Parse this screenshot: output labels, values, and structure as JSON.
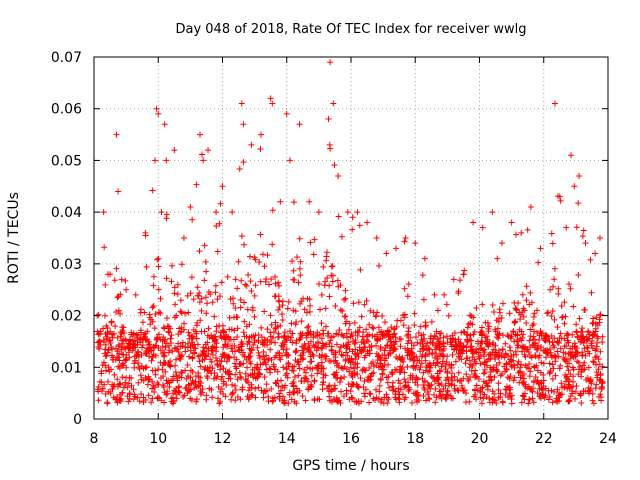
{
  "chart_data": {
    "type": "scatter",
    "title": "Day 048 of 2018, Rate Of TEC Index for receiver wwlg",
    "xlabel": "GPS time / hours",
    "ylabel": "ROTI / TECUs",
    "xlim": [
      8,
      24
    ],
    "ylim": [
      0,
      0.07
    ],
    "x_ticks": [
      8,
      10,
      12,
      14,
      16,
      18,
      20,
      22,
      24
    ],
    "y_ticks": [
      0,
      0.01,
      0.02,
      0.03,
      0.04,
      0.05,
      0.06,
      0.07
    ],
    "x_tick_labels": [
      "8",
      "10",
      "12",
      "14",
      "16",
      "18",
      "20",
      "22",
      "24"
    ],
    "y_tick_labels": [
      "0",
      "0.01",
      "0.02",
      "0.03",
      "0.04",
      "0.05",
      "0.06",
      "0.07"
    ],
    "grid": true,
    "marker": "+",
    "marker_color": "#ff0000",
    "grid_color": "#a0a0a0",
    "series": [
      {
        "name": "ROTI",
        "description_of_envelope": "dense scatter, median ~0.01, upper envelope per hour",
        "x": [
          8.1,
          8.3,
          8.5,
          8.7,
          8.75,
          9.0,
          9.3,
          9.6,
          9.9,
          9.95,
          10.0,
          10.1,
          10.2,
          10.25,
          10.5,
          10.8,
          11.0,
          11.3,
          11.4,
          11.55,
          11.8,
          12.0,
          12.3,
          12.6,
          12.65,
          12.9,
          13.2,
          13.5,
          13.55,
          13.8,
          14.0,
          14.1,
          14.4,
          14.7,
          15.0,
          15.3,
          15.35,
          15.45,
          15.6,
          15.9,
          16.2,
          16.5,
          16.8,
          17.1,
          17.4,
          17.7,
          18.0,
          18.3,
          18.6,
          18.9,
          19.2,
          19.5,
          19.8,
          20.1,
          20.4,
          20.7,
          21.0,
          21.3,
          21.6,
          21.9,
          22.2,
          22.35,
          22.5,
          22.7,
          22.85,
          22.95,
          23.1,
          23.3,
          23.6,
          23.75
        ],
        "y": [
          0.02,
          0.04,
          0.028,
          0.055,
          0.044,
          0.025,
          0.024,
          0.036,
          0.05,
          0.06,
          0.059,
          0.04,
          0.057,
          0.05,
          0.052,
          0.035,
          0.041,
          0.055,
          0.05,
          0.052,
          0.04,
          0.045,
          0.04,
          0.061,
          0.057,
          0.053,
          0.055,
          0.062,
          0.061,
          0.042,
          0.059,
          0.05,
          0.057,
          0.042,
          0.04,
          0.058,
          0.069,
          0.061,
          0.047,
          0.04,
          0.04,
          0.038,
          0.035,
          0.032,
          0.033,
          0.035,
          0.034,
          0.031,
          0.024,
          0.024,
          0.027,
          0.028,
          0.038,
          0.037,
          0.04,
          0.034,
          0.038,
          0.036,
          0.041,
          0.033,
          0.025,
          0.061,
          0.043,
          0.037,
          0.051,
          0.045,
          0.047,
          0.034,
          0.032,
          0.035
        ]
      }
    ]
  }
}
